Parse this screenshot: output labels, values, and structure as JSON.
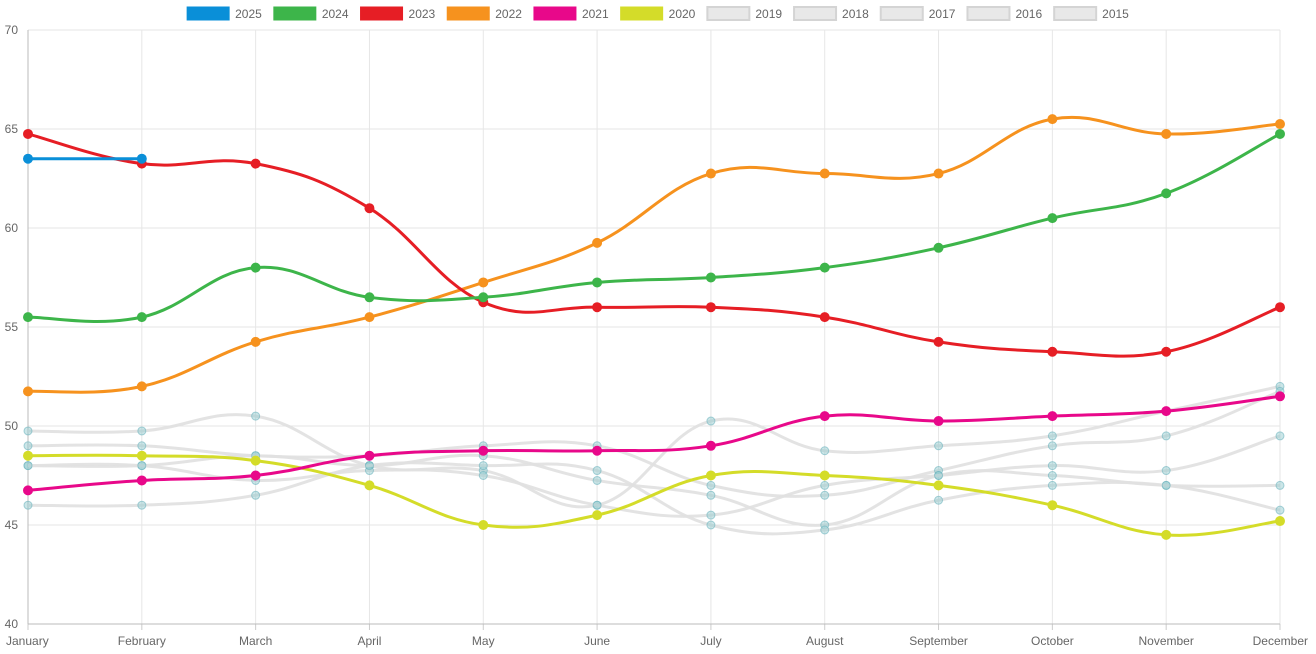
{
  "chart_data": {
    "type": "line",
    "categories": [
      "January",
      "February",
      "March",
      "April",
      "May",
      "June",
      "July",
      "August",
      "September",
      "October",
      "November",
      "December"
    ],
    "ylim": [
      40,
      70
    ],
    "yticks": [
      40,
      45,
      50,
      55,
      60,
      65,
      70
    ],
    "grid": true,
    "legend_position": "top",
    "series": [
      {
        "name": "2025",
        "color": "#0a8fd8",
        "hidden": false,
        "values": [
          63.5,
          63.5,
          null,
          null,
          null,
          null,
          null,
          null,
          null,
          null,
          null,
          null
        ]
      },
      {
        "name": "2024",
        "color": "#3db54a",
        "hidden": false,
        "values": [
          55.5,
          55.5,
          58.0,
          56.5,
          56.5,
          57.25,
          57.5,
          58.0,
          59.0,
          60.5,
          61.75,
          64.75
        ]
      },
      {
        "name": "2023",
        "color": "#e61e25",
        "hidden": false,
        "values": [
          64.75,
          63.25,
          63.25,
          61.0,
          56.25,
          56.0,
          56.0,
          55.5,
          54.25,
          53.75,
          53.75,
          56.0
        ]
      },
      {
        "name": "2022",
        "color": "#f6921e",
        "hidden": false,
        "values": [
          51.75,
          52.0,
          54.25,
          55.5,
          57.25,
          59.25,
          62.75,
          62.75,
          62.75,
          65.5,
          64.75,
          65.25
        ]
      },
      {
        "name": "2021",
        "color": "#e8088a",
        "hidden": false,
        "values": [
          46.75,
          47.25,
          47.5,
          48.5,
          48.75,
          48.75,
          49.0,
          50.5,
          50.25,
          50.5,
          50.75,
          51.5
        ]
      },
      {
        "name": "2020",
        "color": "#d4dc29",
        "hidden": false,
        "values": [
          48.5,
          48.5,
          48.25,
          47.0,
          45.0,
          45.5,
          47.5,
          47.5,
          47.0,
          46.0,
          44.5,
          45.2
        ]
      },
      {
        "name": "2019",
        "color": "#d9d9d9",
        "hidden": true,
        "values": [
          49.75,
          49.75,
          50.5,
          48.0,
          47.75,
          46.0,
          50.25,
          48.75,
          49.0,
          49.5,
          50.75,
          52.0
        ]
      },
      {
        "name": "2018",
        "color": "#d9d9d9",
        "hidden": true,
        "values": [
          49.0,
          49.0,
          48.5,
          48.5,
          49.0,
          49.0,
          47.0,
          46.5,
          47.75,
          49.0,
          49.5,
          51.75
        ]
      },
      {
        "name": "2017",
        "color": "#d9d9d9",
        "hidden": true,
        "values": [
          48.0,
          48.0,
          48.5,
          48.0,
          48.5,
          47.25,
          46.5,
          45.0,
          47.5,
          47.5,
          47.0,
          47.0
        ]
      },
      {
        "name": "2016",
        "color": "#d9d9d9",
        "hidden": true,
        "values": [
          48.0,
          48.0,
          47.25,
          47.75,
          47.5,
          46.0,
          45.5,
          47.0,
          47.5,
          48.0,
          47.75,
          49.5
        ]
      },
      {
        "name": "2015",
        "color": "#d9d9d9",
        "hidden": true,
        "values": [
          46.0,
          46.0,
          46.5,
          48.0,
          48.0,
          47.75,
          45.0,
          44.75,
          46.25,
          47.0,
          47.0,
          45.75
        ]
      }
    ]
  }
}
